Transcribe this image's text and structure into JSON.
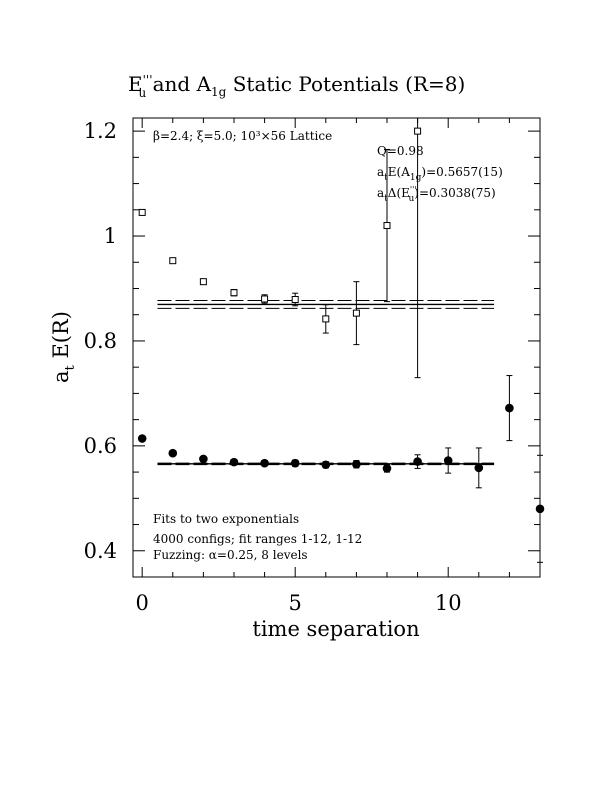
{
  "chart_data": {
    "type": "scatter",
    "title": {
      "E": "E",
      "E_sup": "'''",
      "E_sub": "u",
      "mid": " and A",
      "A_sub": "1g",
      "rest": " Static Potentials (R=8)"
    },
    "xlabel": "time separation",
    "ylabel": {
      "a": "a",
      "sub": "t",
      "rest": " E(R)"
    },
    "xlim": [
      -0.3,
      13
    ],
    "ylim": [
      0.35,
      1.225
    ],
    "xticks": [
      {
        "v": 0,
        "label": "0"
      },
      {
        "v": 5,
        "label": "5"
      },
      {
        "v": 10,
        "label": "10"
      }
    ],
    "yticks": [
      {
        "v": 0.4,
        "label": "0.4"
      },
      {
        "v": 0.6,
        "label": "0.6"
      },
      {
        "v": 0.8,
        "label": "0.8"
      },
      {
        "v": 1.0,
        "label": "1"
      },
      {
        "v": 1.2,
        "label": "1.2"
      }
    ],
    "grid": false,
    "annotations": {
      "params": "β=2.4; ξ=5.0; 10³×56 Lattice",
      "q": "Q=0.98",
      "fit_a1g": {
        "pre": "a",
        "pre_sub": "t",
        "mid": "E(A",
        "mid_sub": "1g",
        "post": ")=0.5657(15)"
      },
      "fit_eu": {
        "pre": "a",
        "pre_sub": "t",
        "mid": "Δ(E",
        "mid_sup": "'''",
        "mid_sub": "u",
        "post": ")=0.3038(75)"
      },
      "note1": "Fits to two exponentials",
      "note2": "4000 configs; fit ranges 1-12, 1-12",
      "note3": "Fuzzing: α=0.25, 8 levels"
    },
    "series": [
      {
        "marker": "open-square",
        "points": [
          {
            "x": 0,
            "y": 1.045,
            "err": 0.004
          },
          {
            "x": 1,
            "y": 0.953,
            "err": 0.004
          },
          {
            "x": 2,
            "y": 0.913,
            "err": 0.005
          },
          {
            "x": 3,
            "y": 0.892,
            "err": 0.006
          },
          {
            "x": 4,
            "y": 0.88,
            "err": 0.008
          },
          {
            "x": 5,
            "y": 0.879,
            "err": 0.012
          },
          {
            "x": 6,
            "y": 0.842,
            "err": 0.027
          },
          {
            "x": 7,
            "y": 0.853,
            "err": 0.06
          },
          {
            "x": 8,
            "y": 1.02,
            "err": 0.145
          },
          {
            "x": 9,
            "y": 1.2,
            "err": 0.47
          }
        ]
      },
      {
        "marker": "filled-circle",
        "points": [
          {
            "x": 0,
            "y": 0.614,
            "err": 0.003
          },
          {
            "x": 1,
            "y": 0.586,
            "err": 0.003
          },
          {
            "x": 2,
            "y": 0.575,
            "err": 0.004
          },
          {
            "x": 3,
            "y": 0.569,
            "err": 0.005
          },
          {
            "x": 4,
            "y": 0.567,
            "err": 0.005
          },
          {
            "x": 5,
            "y": 0.567,
            "err": 0.006
          },
          {
            "x": 6,
            "y": 0.564,
            "err": 0.006
          },
          {
            "x": 7,
            "y": 0.565,
            "err": 0.007
          },
          {
            "x": 8,
            "y": 0.557,
            "err": 0.007
          },
          {
            "x": 9,
            "y": 0.57,
            "err": 0.013
          },
          {
            "x": 10,
            "y": 0.572,
            "err": 0.024
          },
          {
            "x": 11,
            "y": 0.558,
            "err": 0.038
          },
          {
            "x": 12,
            "y": 0.672,
            "err": 0.062
          },
          {
            "x": 13,
            "y": 0.48,
            "err": 0.102
          }
        ]
      }
    ],
    "fit_bands": [
      {
        "value": 0.8695,
        "err": 0.0075,
        "x_from": 0.5,
        "x_to": 11.5
      },
      {
        "value": 0.5657,
        "err": 0.0015,
        "x_from": 0.5,
        "x_to": 11.5
      }
    ]
  }
}
